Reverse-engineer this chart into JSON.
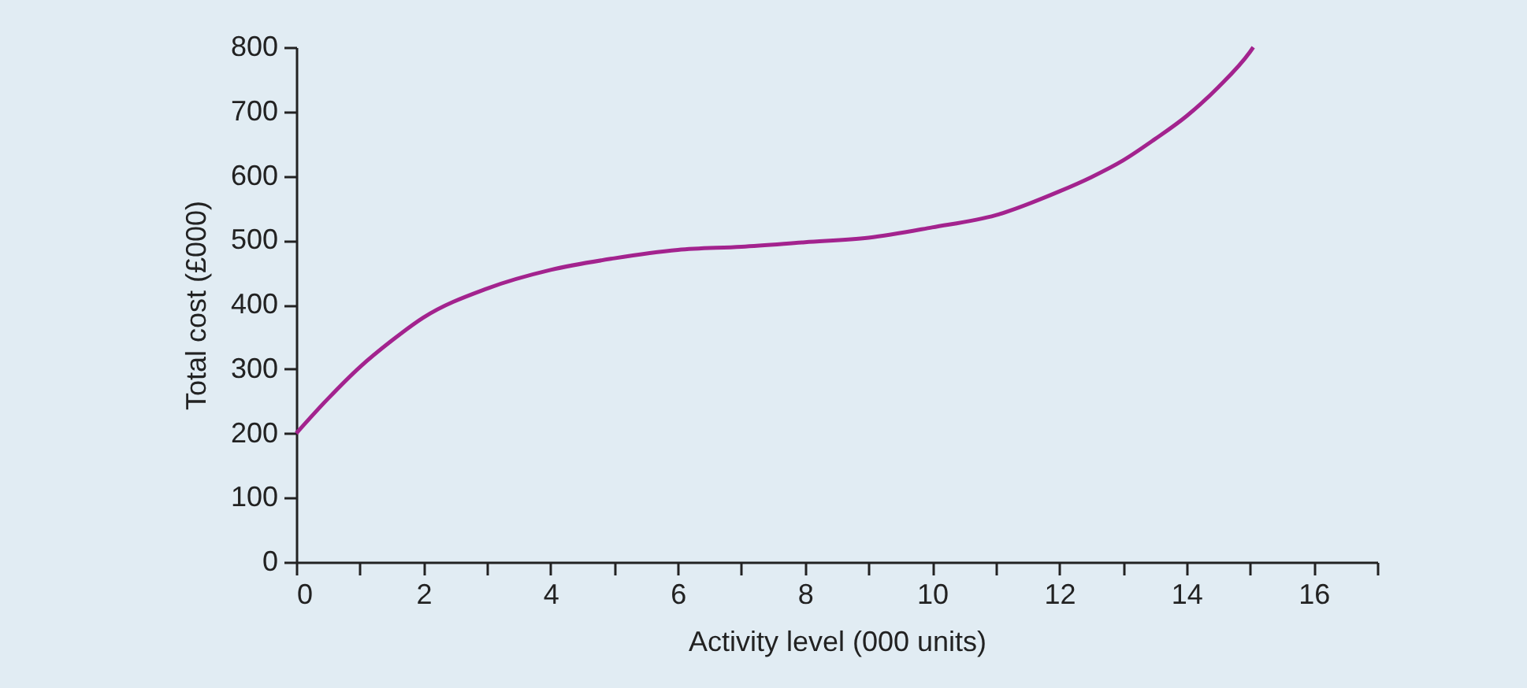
{
  "chart_data": {
    "type": "line",
    "xlabel": "Activity level (000 units)",
    "ylabel": "Total cost (£000)",
    "x": [
      0,
      0.5,
      1,
      1.5,
      2,
      3,
      4,
      5,
      6,
      7,
      8,
      9,
      10,
      11,
      12,
      12.5,
      13,
      13.5,
      14,
      14.5,
      15,
      15.05
    ],
    "series": [
      {
        "color": "#a3238e",
        "values": [
          200,
          254,
          303,
          344,
          380,
          425,
          454,
          472,
          485,
          490,
          497,
          504,
          520,
          539,
          576,
          598,
          624,
          657,
          693,
          738,
          793,
          800
        ]
      }
    ],
    "xlim": [
      0,
      17
    ],
    "xticks": [
      0,
      {
        "value": 1,
        "label": null
      },
      2,
      {
        "value": 3,
        "label": null
      },
      4,
      {
        "value": 5,
        "label": null
      },
      6,
      {
        "value": 7,
        "label": null
      },
      8,
      {
        "value": 9,
        "label": null
      },
      10,
      {
        "value": 11,
        "label": null
      },
      12,
      {
        "value": 13,
        "label": null
      },
      14,
      {
        "value": 15,
        "label": null
      },
      16,
      {
        "value": 17,
        "label": null
      }
    ],
    "ylim": [
      0,
      800
    ],
    "yticks": [
      0,
      100,
      200,
      300,
      400,
      500,
      600,
      700,
      800
    ],
    "grid": false,
    "marker": "none",
    "line_style": "solid"
  }
}
